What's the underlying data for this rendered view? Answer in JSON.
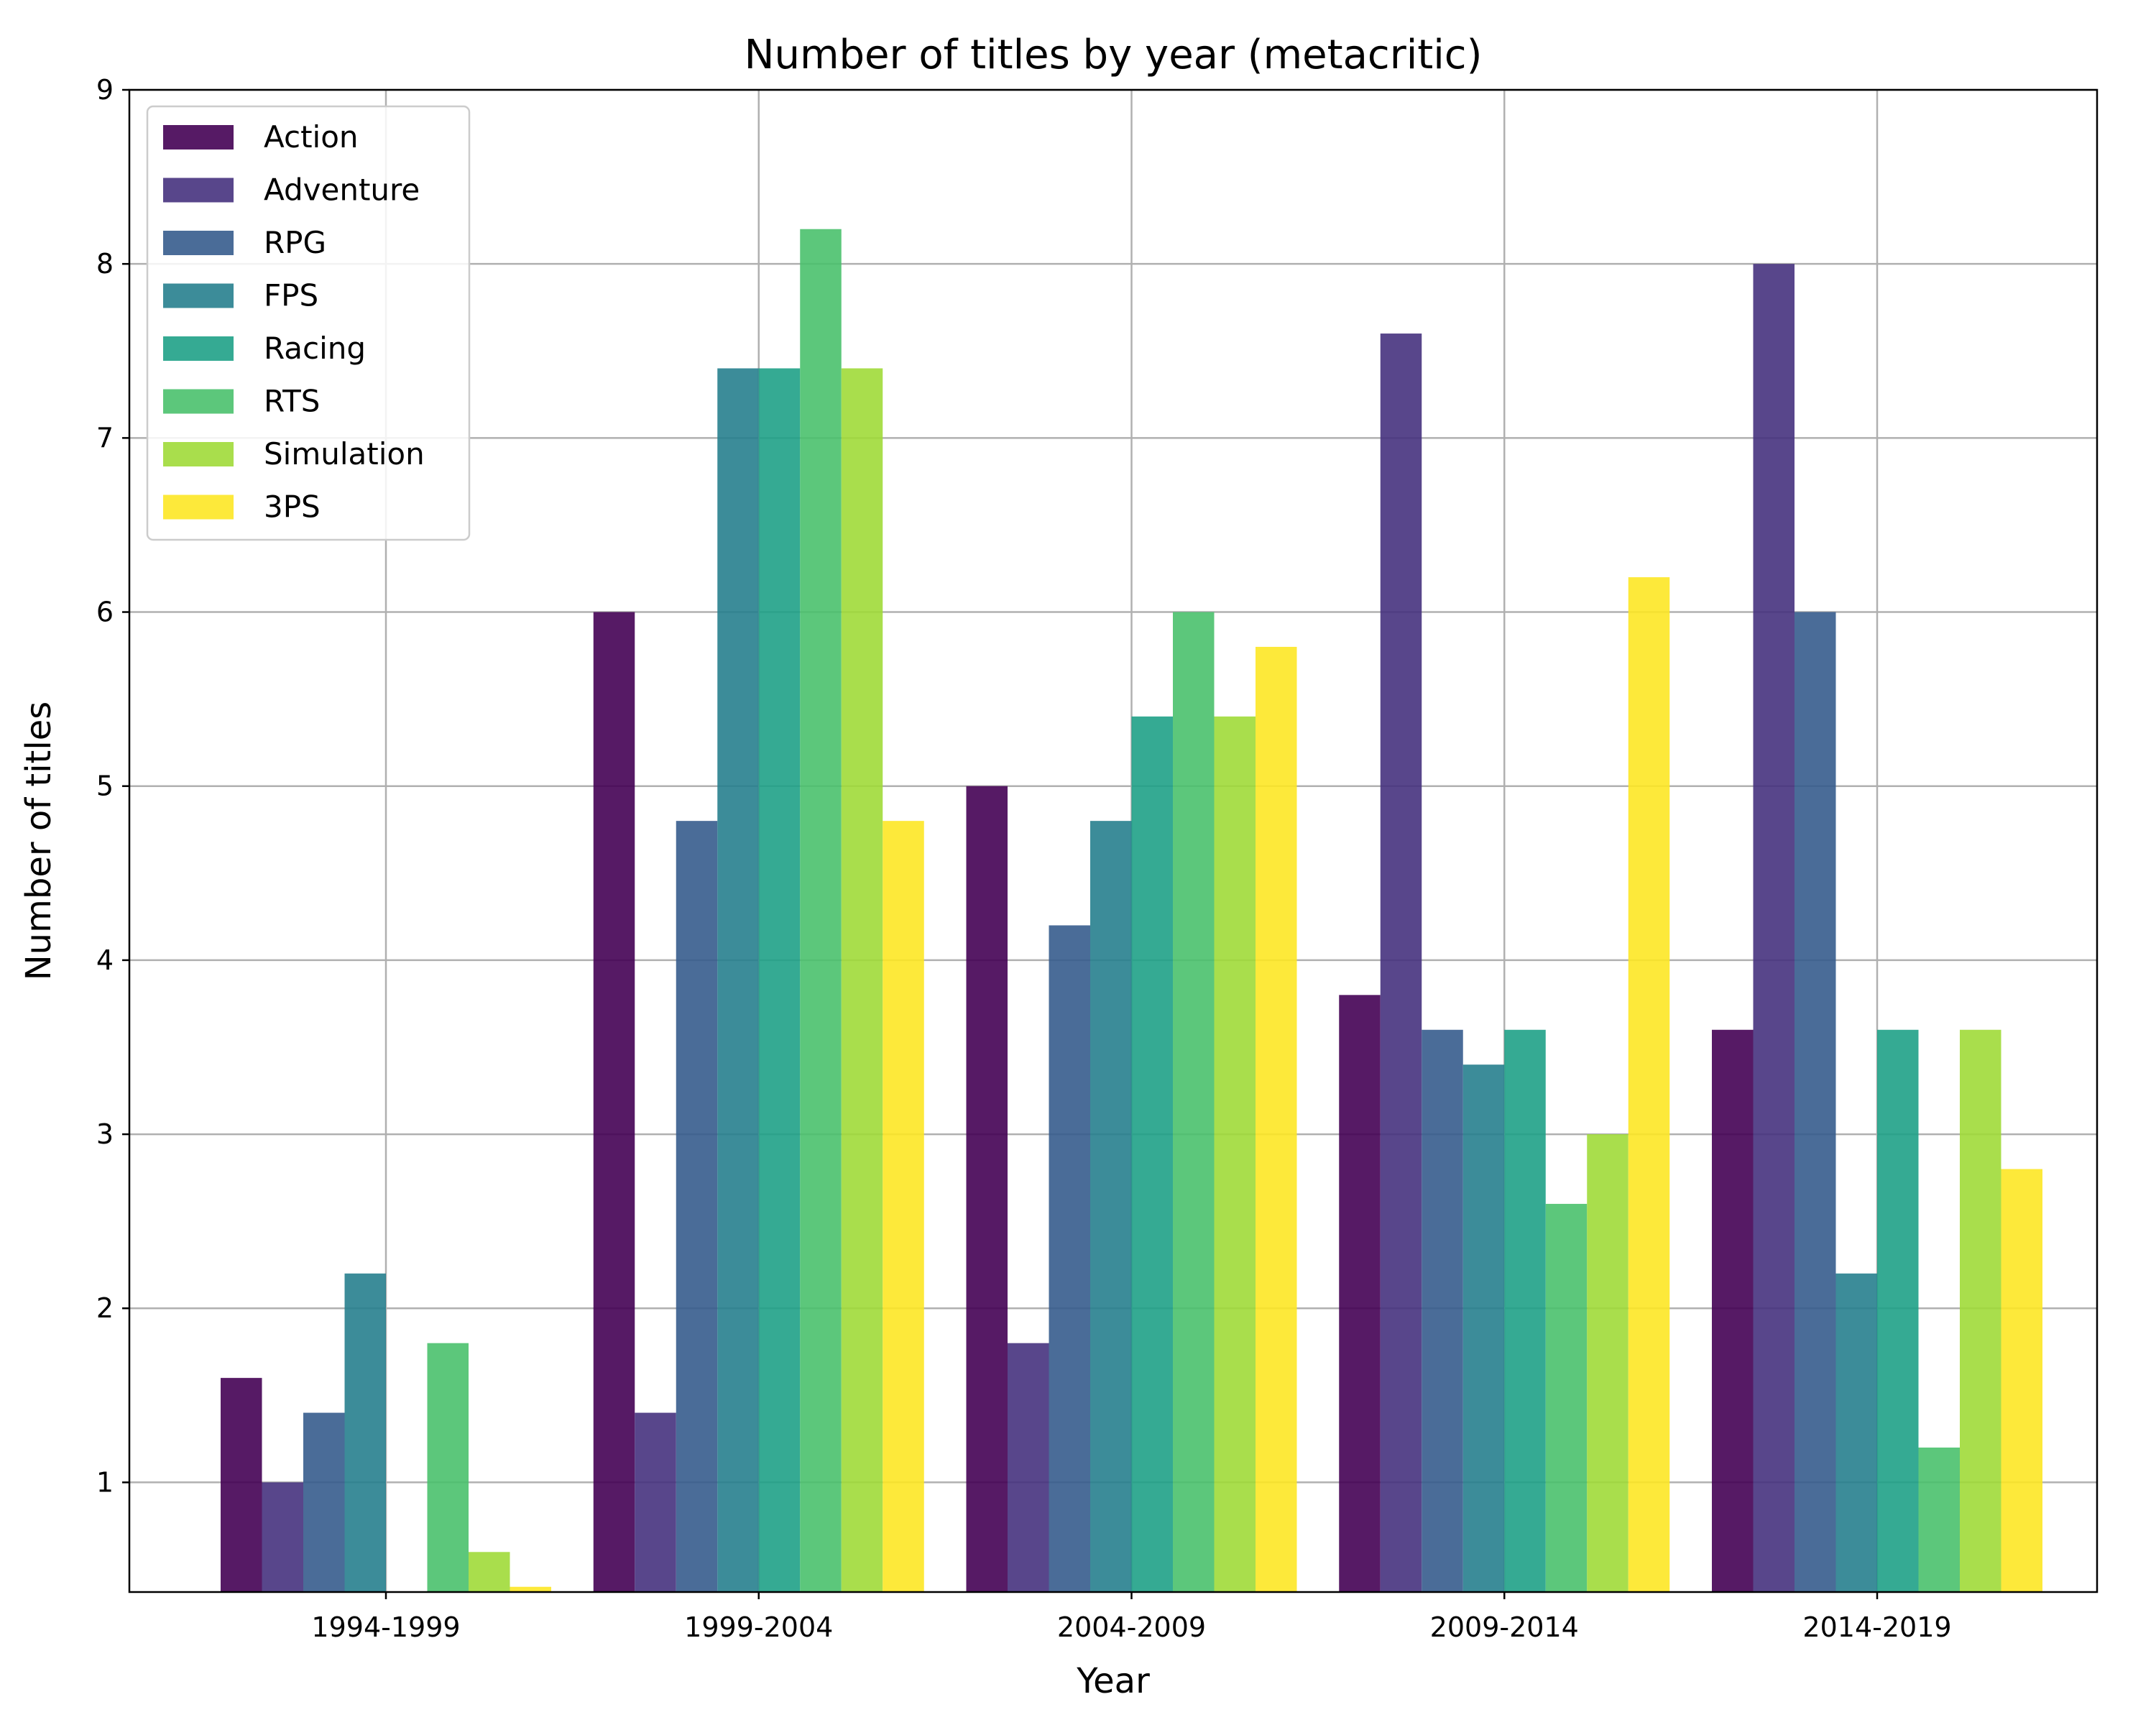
{
  "chart_data": {
    "type": "bar",
    "title": "Number of titles by year (metacritic)",
    "xlabel": "Year",
    "ylabel": "Number of titles",
    "categories": [
      "1994-1999",
      "1999-2004",
      "2004-2009",
      "2009-2014",
      "2014-2019"
    ],
    "ylim": [
      0.37,
      9
    ],
    "yticks": [
      "1",
      "2",
      "3",
      "4",
      "5",
      "6",
      "7",
      "8",
      "9"
    ],
    "grid": true,
    "legend_position": "upper left",
    "series": [
      {
        "name": "Action",
        "color": "#440154",
        "values": [
          1.6,
          6.0,
          5.0,
          3.8,
          3.6
        ]
      },
      {
        "name": "Adventure",
        "color": "#46327e",
        "values": [
          1.0,
          1.4,
          1.8,
          7.6,
          8.0
        ]
      },
      {
        "name": "RPG",
        "color": "#365c8d",
        "values": [
          1.4,
          4.8,
          4.2,
          3.6,
          6.0
        ]
      },
      {
        "name": "FPS",
        "color": "#277f8e",
        "values": [
          2.2,
          7.4,
          4.8,
          3.4,
          2.2
        ]
      },
      {
        "name": "Racing",
        "color": "#1fa187",
        "values": [
          0.0,
          7.4,
          5.4,
          3.6,
          3.6
        ]
      },
      {
        "name": "RTS",
        "color": "#4ac16d",
        "values": [
          1.8,
          8.2,
          6.0,
          2.6,
          1.2
        ]
      },
      {
        "name": "Simulation",
        "color": "#a0da39",
        "values": [
          0.6,
          7.4,
          5.4,
          3.0,
          3.6
        ]
      },
      {
        "name": "3PS",
        "color": "#fde725",
        "values": [
          0.4,
          4.8,
          5.8,
          6.2,
          2.8
        ]
      }
    ]
  }
}
